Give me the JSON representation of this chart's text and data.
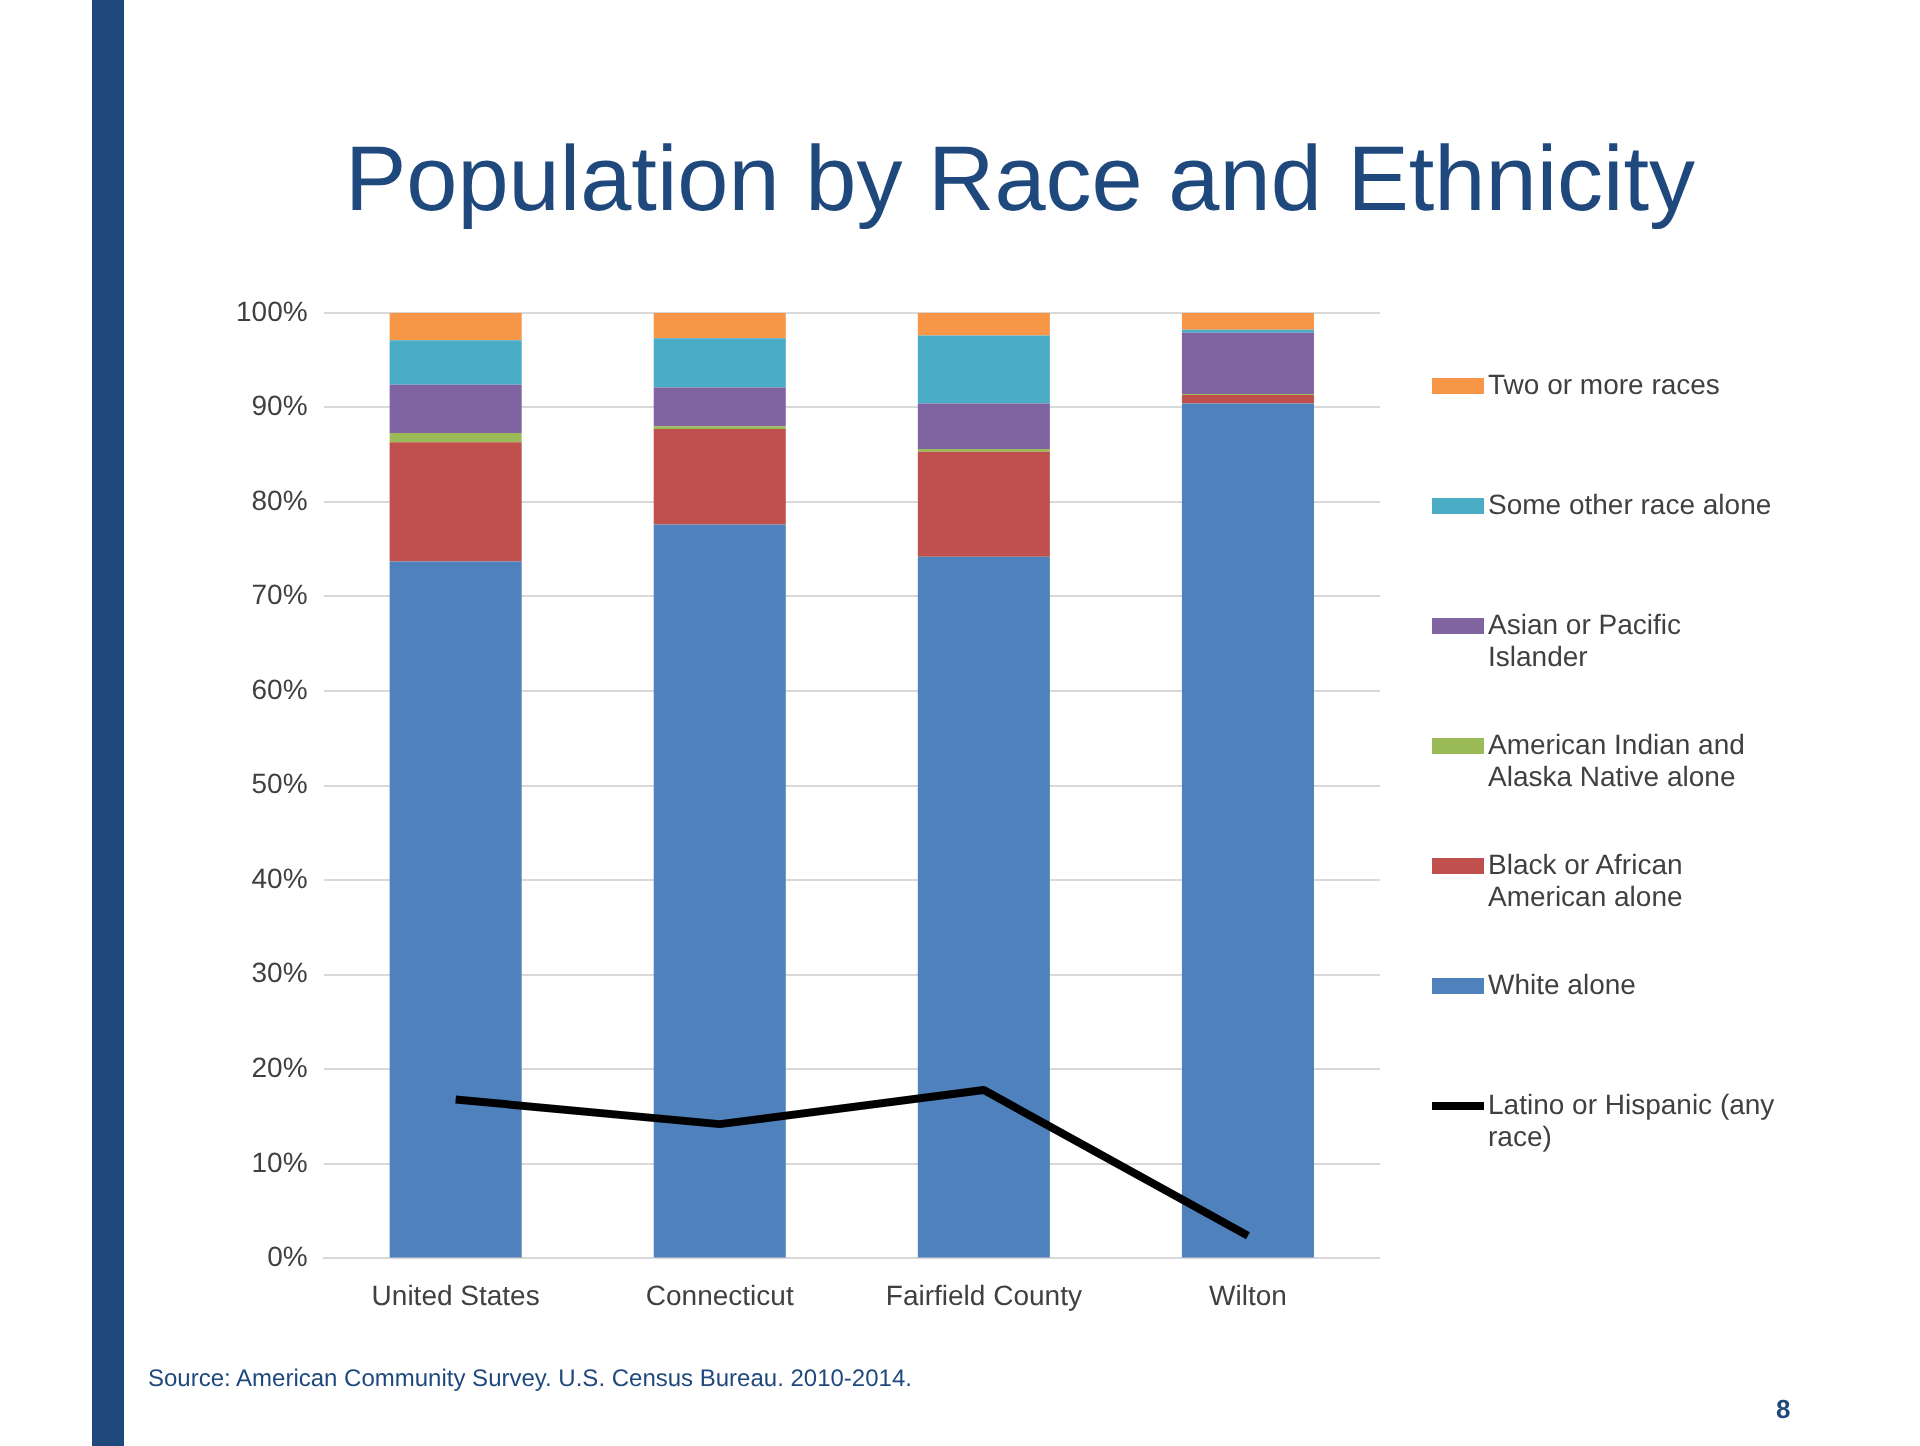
{
  "chart_data": {
    "type": "bar",
    "title": "Population by Race and Ethnicity",
    "stacked": true,
    "legend": "right",
    "grid": "y",
    "categories": [
      "United States",
      "Connecticut",
      "Fairfield County",
      "Wilton"
    ],
    "series": [
      {
        "name": "White alone",
        "color": "#4f81bd",
        "values": [
          73.7,
          77.6,
          74.2,
          90.4
        ]
      },
      {
        "name": "Black or African American alone",
        "color": "#c0504d",
        "values": [
          12.6,
          10.1,
          11.1,
          0.9
        ]
      },
      {
        "name": "American Indian and Alaska Native alone",
        "color": "#9bbb59",
        "values": [
          1.0,
          0.3,
          0.3,
          0.1
        ]
      },
      {
        "name": "Asian or Pacific Islander",
        "color": "#8064a2",
        "values": [
          5.1,
          4.1,
          4.8,
          6.5
        ]
      },
      {
        "name": "Some other race alone",
        "color": "#4bacc6",
        "values": [
          4.7,
          5.2,
          7.2,
          0.3
        ]
      },
      {
        "name": "Two or more races",
        "color": "#f79646",
        "values": [
          2.9,
          2.7,
          2.4,
          1.8
        ]
      },
      {
        "name": "Latino or Hispanic (any race)",
        "type": "line",
        "color": "#000000",
        "values": [
          16.8,
          14.2,
          17.8,
          2.4
        ]
      }
    ],
    "ylim": [
      0,
      100
    ],
    "yticks": [
      {
        "value": 0,
        "label": "0%"
      },
      {
        "value": 10,
        "label": "10%"
      },
      {
        "value": 20,
        "label": "20%"
      },
      {
        "value": 30,
        "label": "30%"
      },
      {
        "value": 40,
        "label": "40%"
      },
      {
        "value": 50,
        "label": "50%"
      },
      {
        "value": 60,
        "label": "60%"
      },
      {
        "value": 70,
        "label": "70%"
      },
      {
        "value": 80,
        "label": "80%"
      },
      {
        "value": 90,
        "label": "90%"
      },
      {
        "value": 100,
        "label": "100%"
      }
    ],
    "annotations": [
      "Source: American Community Survey. U.S. Census Bureau. 2010-2014.",
      "8"
    ]
  }
}
